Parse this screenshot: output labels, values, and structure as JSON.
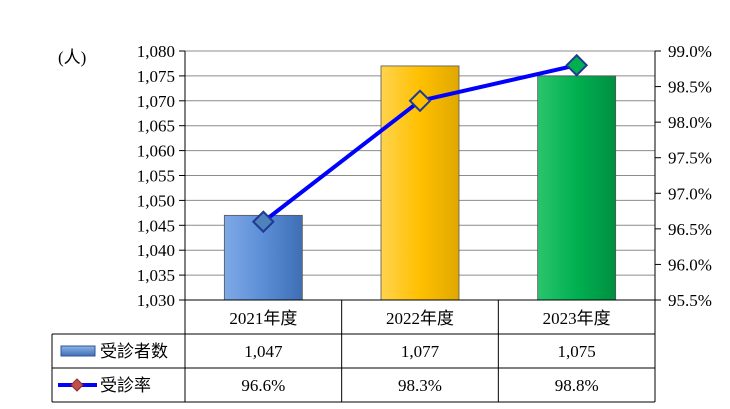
{
  "chart_data": {
    "type": "bar",
    "categories": [
      "2021年度",
      "2022年度",
      "2023年度"
    ],
    "y_unit_label": "(人)",
    "left_axis": {
      "ylim": [
        1030,
        1080
      ],
      "ticks": [
        "1,030",
        "1,035",
        "1,040",
        "1,045",
        "1,050",
        "1,055",
        "1,060",
        "1,065",
        "1,070",
        "1,075",
        "1,080"
      ]
    },
    "right_axis": {
      "ylim": [
        95.5,
        99.0
      ],
      "ticks": [
        "95.5%",
        "96.0%",
        "96.5%",
        "97.0%",
        "97.5%",
        "98.0%",
        "98.5%",
        "99.0%"
      ]
    },
    "series": [
      {
        "name": "受診者数",
        "kind": "bar",
        "axis": "left",
        "values": [
          1047,
          1077,
          1075
        ],
        "labels": [
          "1,047",
          "1,077",
          "1,075"
        ],
        "colors": [
          "#5B8ED6",
          "#FFC000",
          "#00B050"
        ]
      },
      {
        "name": "受診率",
        "kind": "line",
        "axis": "right",
        "values": [
          96.6,
          98.3,
          98.8
        ],
        "labels": [
          "96.6%",
          "98.3%",
          "98.8%"
        ],
        "line_color": "#0000FF",
        "marker_colors": [
          "#4F81BD",
          "#FFC000",
          "#00B050"
        ]
      }
    ],
    "gridlines": true,
    "legend": "data-table"
  }
}
